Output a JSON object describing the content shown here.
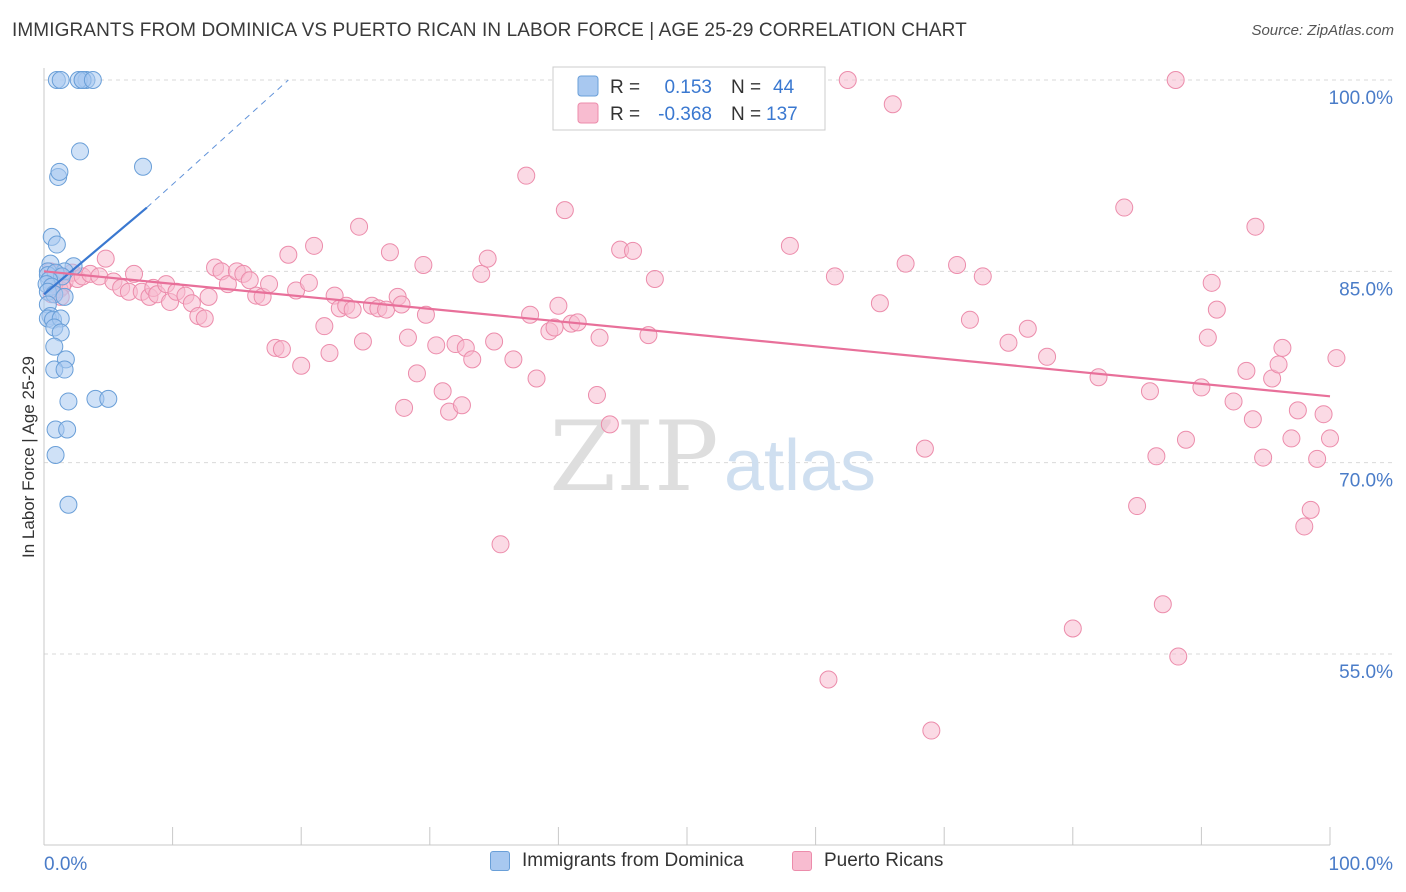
{
  "header": {
    "title": "IMMIGRANTS FROM DOMINICA VS PUERTO RICAN IN LABOR FORCE | AGE 25-29 CORRELATION CHART",
    "source": "Source: ZipAtlas.com"
  },
  "watermark": {
    "zip": "ZIP",
    "atlas": "atlas"
  },
  "legend_top": {
    "rows": [
      {
        "r_label": "R =",
        "r_value": "0.153",
        "n_label": "N =",
        "n_value": "44"
      },
      {
        "r_label": "R =",
        "r_value": "-0.368",
        "n_label": "N =",
        "n_value": "137"
      }
    ]
  },
  "legend_bottom": {
    "items": [
      {
        "label": "Immigrants from Dominica"
      },
      {
        "label": "Puerto Ricans"
      }
    ]
  },
  "colors": {
    "blue_fill": "#a8c8f0",
    "blue_stroke": "#6a9fd8",
    "blue_line": "#3a78d0",
    "pink_fill": "#f8bcd0",
    "pink_stroke": "#ec8cab",
    "pink_line": "#e8709a",
    "axis_text": "#4a7cc8",
    "grid": "#d9d9d9"
  },
  "chart_data": {
    "type": "scatter",
    "title": "IMMIGRANTS FROM DOMINICA VS PUERTO RICAN IN LABOR FORCE | AGE 25-29 CORRELATION CHART",
    "xlabel": "",
    "ylabel": "In Labor Force | Age 25-29",
    "xlim": [
      0,
      100
    ],
    "ylim": [
      40,
      101.5
    ],
    "x_tick_labels": [
      "0.0%",
      "100.0%"
    ],
    "y_ticks": [
      55,
      70,
      85,
      100
    ],
    "y_tick_labels": [
      "55.0%",
      "70.0%",
      "85.0%",
      "100.0%"
    ],
    "grid": true,
    "legend_position": "top-center",
    "series": [
      {
        "name": "Immigrants from Dominica",
        "r": 0.153,
        "n": 44,
        "trend": {
          "x": [
            0,
            8
          ],
          "y": [
            83.2,
            90.0
          ],
          "dashed_to": [
            19,
            100
          ]
        },
        "points": [
          [
            1.0,
            100
          ],
          [
            1.3,
            100
          ],
          [
            3.0,
            100
          ],
          [
            3.3,
            100
          ],
          [
            2.7,
            100
          ],
          [
            3.0,
            100
          ],
          [
            3.8,
            100
          ],
          [
            2.8,
            94.4
          ],
          [
            1.1,
            92.4
          ],
          [
            1.2,
            92.8
          ],
          [
            7.7,
            93.2
          ],
          [
            0.6,
            87.7
          ],
          [
            1.0,
            87.1
          ],
          [
            0.5,
            85.6
          ],
          [
            2.3,
            85.4
          ],
          [
            0.3,
            85.0
          ],
          [
            1.6,
            85.0
          ],
          [
            0.3,
            84.7
          ],
          [
            0.9,
            84.9
          ],
          [
            1.4,
            84.6
          ],
          [
            0.4,
            84.3
          ],
          [
            0.2,
            84.0
          ],
          [
            0.6,
            83.8
          ],
          [
            0.3,
            83.4
          ],
          [
            0.8,
            83.2
          ],
          [
            1.6,
            83.0
          ],
          [
            0.3,
            82.4
          ],
          [
            0.5,
            81.5
          ],
          [
            0.3,
            81.3
          ],
          [
            0.7,
            81.2
          ],
          [
            1.3,
            81.3
          ],
          [
            0.8,
            80.6
          ],
          [
            1.3,
            80.2
          ],
          [
            0.8,
            79.1
          ],
          [
            1.7,
            78.1
          ],
          [
            0.8,
            77.3
          ],
          [
            1.6,
            77.3
          ],
          [
            1.9,
            74.8
          ],
          [
            4.0,
            75.0
          ],
          [
            5.0,
            75.0
          ],
          [
            0.9,
            72.6
          ],
          [
            1.8,
            72.6
          ],
          [
            0.9,
            70.6
          ],
          [
            1.9,
            66.7
          ]
        ]
      },
      {
        "name": "Puerto Ricans",
        "r": -0.368,
        "n": 137,
        "trend": {
          "x": [
            0,
            100
          ],
          "y": [
            85.0,
            75.2
          ]
        },
        "points": [
          [
            0.5,
            85.0
          ],
          [
            1.0,
            84.8
          ],
          [
            1.3,
            84.5
          ],
          [
            1.6,
            84.2
          ],
          [
            1.2,
            83.6
          ],
          [
            0.8,
            84.0
          ],
          [
            1.4,
            83.8
          ],
          [
            0.6,
            83.2
          ],
          [
            1.3,
            83.0
          ],
          [
            2.2,
            84.9
          ],
          [
            2.6,
            84.4
          ],
          [
            3.0,
            84.6
          ],
          [
            3.6,
            84.8
          ],
          [
            4.3,
            84.6
          ],
          [
            4.8,
            86.0
          ],
          [
            5.4,
            84.2
          ],
          [
            6.0,
            83.7
          ],
          [
            6.6,
            83.4
          ],
          [
            7.0,
            84.8
          ],
          [
            7.6,
            83.4
          ],
          [
            8.2,
            83.0
          ],
          [
            8.5,
            83.7
          ],
          [
            8.8,
            83.2
          ],
          [
            9.5,
            84.0
          ],
          [
            9.8,
            82.6
          ],
          [
            10.3,
            83.4
          ],
          [
            11.0,
            83.1
          ],
          [
            11.5,
            82.5
          ],
          [
            12.0,
            81.5
          ],
          [
            12.5,
            81.3
          ],
          [
            12.8,
            83.0
          ],
          [
            13.3,
            85.3
          ],
          [
            13.8,
            85.0
          ],
          [
            14.3,
            84.0
          ],
          [
            15.0,
            85.0
          ],
          [
            15.5,
            84.8
          ],
          [
            16.0,
            84.3
          ],
          [
            16.5,
            83.1
          ],
          [
            17.0,
            83.0
          ],
          [
            17.5,
            84.0
          ],
          [
            18.0,
            79.0
          ],
          [
            18.5,
            78.9
          ],
          [
            19.0,
            86.3
          ],
          [
            19.6,
            83.5
          ],
          [
            20.0,
            77.6
          ],
          [
            20.6,
            84.1
          ],
          [
            21.0,
            87.0
          ],
          [
            21.8,
            80.7
          ],
          [
            22.2,
            78.6
          ],
          [
            22.6,
            83.1
          ],
          [
            23.0,
            82.1
          ],
          [
            23.5,
            82.3
          ],
          [
            24.0,
            82.0
          ],
          [
            24.5,
            88.5
          ],
          [
            24.8,
            79.5
          ],
          [
            25.5,
            82.3
          ],
          [
            26.0,
            82.1
          ],
          [
            26.6,
            82.0
          ],
          [
            26.9,
            86.5
          ],
          [
            27.5,
            83.0
          ],
          [
            27.8,
            82.4
          ],
          [
            28.0,
            74.3
          ],
          [
            28.3,
            79.8
          ],
          [
            29.0,
            77.0
          ],
          [
            29.5,
            85.5
          ],
          [
            29.7,
            81.6
          ],
          [
            30.5,
            79.2
          ],
          [
            31.0,
            75.6
          ],
          [
            31.5,
            74.0
          ],
          [
            32.0,
            79.3
          ],
          [
            32.5,
            74.5
          ],
          [
            32.8,
            79.0
          ],
          [
            33.3,
            78.1
          ],
          [
            34.0,
            84.8
          ],
          [
            34.5,
            86.0
          ],
          [
            35.0,
            79.5
          ],
          [
            35.5,
            63.6
          ],
          [
            36.5,
            78.1
          ],
          [
            37.5,
            92.5
          ],
          [
            37.8,
            81.6
          ],
          [
            38.3,
            76.6
          ],
          [
            39.3,
            80.3
          ],
          [
            39.7,
            80.6
          ],
          [
            40.0,
            82.3
          ],
          [
            40.5,
            89.8
          ],
          [
            41.0,
            80.9
          ],
          [
            41.5,
            81.0
          ],
          [
            43.0,
            75.3
          ],
          [
            43.2,
            79.8
          ],
          [
            44.0,
            73.0
          ],
          [
            44.8,
            86.7
          ],
          [
            45.8,
            86.6
          ],
          [
            47.0,
            80.0
          ],
          [
            47.5,
            84.4
          ],
          [
            49.0,
            100
          ],
          [
            52.5,
            100
          ],
          [
            58.0,
            87.0
          ],
          [
            58.5,
            100
          ],
          [
            58.7,
            100
          ],
          [
            61.0,
            53.0
          ],
          [
            61.5,
            84.6
          ],
          [
            62.5,
            100
          ],
          [
            65.0,
            82.5
          ],
          [
            66.0,
            98.1
          ],
          [
            67.0,
            85.6
          ],
          [
            68.5,
            71.1
          ],
          [
            69.0,
            49.0
          ],
          [
            71.0,
            85.5
          ],
          [
            72.0,
            81.2
          ],
          [
            73.0,
            84.6
          ],
          [
            75.0,
            79.4
          ],
          [
            76.5,
            80.5
          ],
          [
            78.0,
            78.3
          ],
          [
            80.0,
            57.0
          ],
          [
            82.0,
            76.7
          ],
          [
            84.0,
            90.0
          ],
          [
            85.0,
            66.6
          ],
          [
            86.0,
            75.6
          ],
          [
            86.5,
            70.5
          ],
          [
            87.0,
            58.9
          ],
          [
            88.0,
            100
          ],
          [
            88.2,
            54.8
          ],
          [
            88.8,
            71.8
          ],
          [
            90.0,
            75.9
          ],
          [
            90.5,
            79.8
          ],
          [
            90.8,
            84.1
          ],
          [
            91.2,
            82.0
          ],
          [
            92.5,
            74.8
          ],
          [
            93.5,
            77.2
          ],
          [
            94.0,
            73.4
          ],
          [
            94.2,
            88.5
          ],
          [
            94.8,
            70.4
          ],
          [
            95.5,
            76.6
          ],
          [
            96.0,
            77.7
          ],
          [
            96.3,
            79.0
          ],
          [
            97.0,
            71.9
          ],
          [
            97.5,
            74.1
          ],
          [
            98.0,
            65.0
          ],
          [
            98.5,
            66.3
          ],
          [
            99.0,
            70.3
          ],
          [
            99.5,
            73.8
          ],
          [
            100.0,
            71.9
          ],
          [
            100.5,
            78.2
          ]
        ]
      }
    ]
  }
}
